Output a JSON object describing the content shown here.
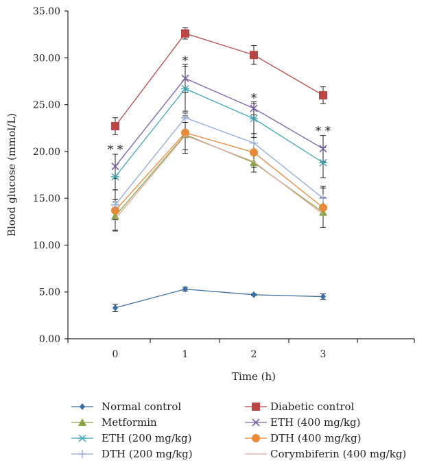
{
  "chart_data": {
    "type": "line",
    "xlabel": "Time (h)",
    "ylabel": "Blood glucose (mmol/L)",
    "categories": [
      "0",
      "1",
      "2",
      "3"
    ],
    "ylim": [
      0,
      35
    ],
    "yticks": [
      "0.00",
      "5.00",
      "10.00",
      "15.00",
      "20.00",
      "25.00",
      "30.00",
      "35.00"
    ],
    "grid": false,
    "legend_position": "bottom",
    "series": [
      {
        "name": "Normal control",
        "color": "#3B6EA8",
        "marker": "diamond",
        "values": [
          3.3,
          5.3,
          4.7,
          4.5
        ],
        "errors": [
          0.4,
          0.2,
          0.1,
          0.3
        ]
      },
      {
        "name": "Diabetic control",
        "color": "#B94545",
        "marker": "square",
        "values": [
          22.7,
          32.6,
          30.3,
          26.0
        ],
        "errors": [
          0.9,
          0.6,
          1.0,
          0.9
        ]
      },
      {
        "name": "Metformin",
        "color": "#86A645",
        "marker": "triangle",
        "values": [
          13.1,
          21.8,
          18.8,
          13.5
        ],
        "errors": [
          1.5,
          2.0,
          1.0,
          1.6
        ]
      },
      {
        "name": "ETH (400 mg/kg)",
        "color": "#7B5EA7",
        "marker": "x",
        "values": [
          18.4,
          27.8,
          24.6,
          20.3
        ],
        "errors": [
          1.3,
          1.5,
          0.7,
          1.4
        ]
      },
      {
        "name": "ETH (200 mg/kg)",
        "color": "#3FA6B5",
        "marker": "star",
        "values": [
          17.3,
          26.7,
          23.5,
          18.8
        ],
        "errors": [
          2.4,
          2.4,
          1.6,
          1.6
        ]
      },
      {
        "name": "DTH (400 mg/kg)",
        "color": "#E8893A",
        "marker": "circle",
        "values": [
          13.7,
          22.0,
          19.9,
          14.0
        ],
        "errors": [
          2.2,
          1.8,
          1.6,
          2.1
        ]
      },
      {
        "name": "DTH (200 mg/kg)",
        "color": "#8FA9DB",
        "marker": "plus",
        "values": [
          14.3,
          23.6,
          20.9,
          15.0
        ],
        "errors": [
          1.6,
          0.5,
          1.0,
          1.3
        ]
      },
      {
        "name": "Corymbiferin (400 mg/kg)",
        "color": "#E3A49E",
        "marker": "none",
        "values": [
          12.8,
          21.7,
          18.9,
          13.3
        ],
        "errors": [
          0,
          0,
          0,
          0
        ]
      }
    ],
    "annotations": [
      {
        "x": "0",
        "y": 19.8,
        "text": "* *"
      },
      {
        "x": "1",
        "y": 29.3,
        "text": "*"
      },
      {
        "x": "2",
        "y": 25.3,
        "text": "*"
      },
      {
        "x": "3",
        "y": 21.8,
        "text": "* *"
      }
    ]
  }
}
